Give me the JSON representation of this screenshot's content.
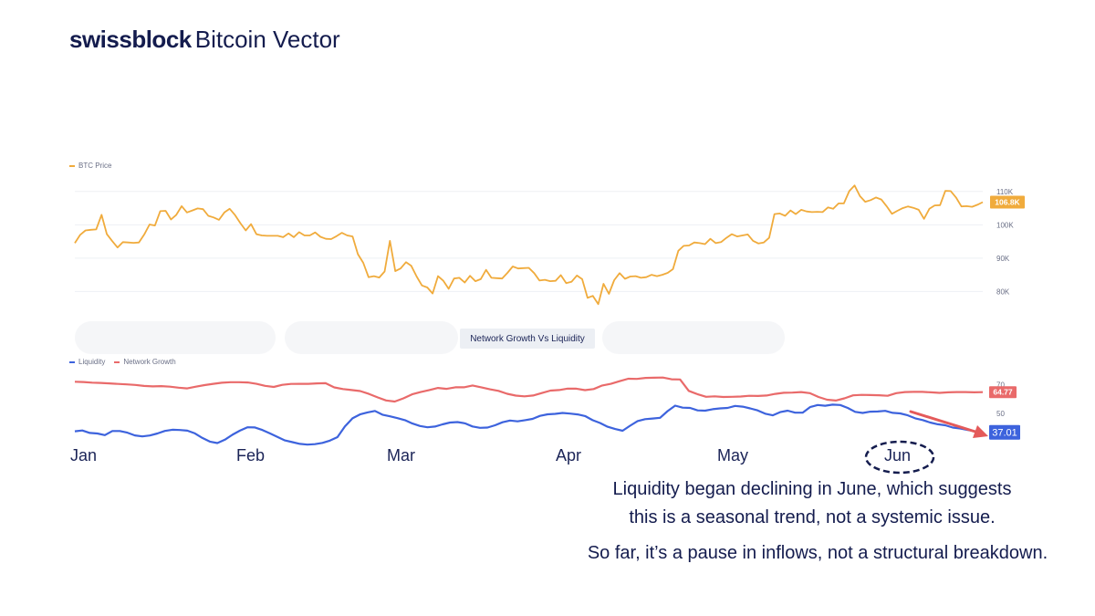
{
  "brand": {
    "name": "swissblock",
    "product": "Bitcoin Vector"
  },
  "colors": {
    "price": "#f0ab3c",
    "network_growth": "#e96a6a",
    "liquidity": "#3d63dd",
    "arrow": "#e45a5a",
    "text": "#1b2457"
  },
  "chart_data": [
    {
      "id": "price",
      "type": "line",
      "title": "",
      "legend": [
        "BTC Price"
      ],
      "y_ticks": [
        80000,
        90000,
        100000,
        110000
      ],
      "y_tick_labels": [
        "80K",
        "90K",
        "100K",
        "110K"
      ],
      "ylim": [
        73000,
        113500
      ],
      "last_value_label": "106.8K",
      "series": [
        {
          "name": "BTC Price",
          "color": "#f0ab3c",
          "values": [
            94500,
            97000,
            98300,
            98500,
            98600,
            103000,
            97200,
            95100,
            93200,
            94800,
            94700,
            94600,
            94700,
            97100,
            100100,
            99800,
            104100,
            104200,
            101600,
            103000,
            105600,
            103700,
            104300,
            104900,
            104700,
            102700,
            102200,
            101500,
            103700,
            104800,
            102900,
            100500,
            98300,
            100200,
            97200,
            96800,
            96700,
            96700,
            96700,
            96300,
            97400,
            96300,
            97800,
            96800,
            96800,
            97700,
            96400,
            95800,
            95700,
            96600,
            97600,
            96800,
            96500,
            91200,
            88600,
            84300,
            84600,
            84200,
            86000,
            95200,
            86100,
            86900,
            88800,
            87700,
            84500,
            81800,
            81200,
            79400,
            84600,
            83200,
            80800,
            83900,
            84100,
            82700,
            84700,
            83100,
            83700,
            86500,
            84100,
            84000,
            83900,
            85600,
            87500,
            86900,
            87000,
            87100,
            85500,
            83300,
            83500,
            83100,
            83200,
            84900,
            82500,
            82900,
            84800,
            83700,
            78100,
            78700,
            76200,
            82300,
            79300,
            83400,
            85500,
            83800,
            84500,
            84600,
            84100,
            84300,
            85000,
            84600,
            85000,
            85600,
            86700,
            92200,
            93700,
            93800,
            94700,
            94500,
            94200,
            95800,
            94500,
            94800,
            96100,
            97200,
            96500,
            96800,
            97100,
            95200,
            94400,
            94700,
            96100,
            103200,
            103400,
            102700,
            104300,
            103200,
            104500,
            104000,
            103800,
            103900,
            103800,
            105200,
            104800,
            106400,
            106400,
            110100,
            111800,
            108600,
            106900,
            107400,
            108200,
            107600,
            105600,
            103300,
            104200,
            105000,
            105500,
            105100,
            104500,
            101800,
            104800,
            105800,
            105900,
            110200,
            110100,
            108200,
            105500,
            105600,
            105400,
            106000,
            106800
          ]
        }
      ]
    },
    {
      "id": "network_liquidity",
      "type": "line",
      "title": "Network Growth Vs Liquidity",
      "legend": [
        "Liquidity",
        "Network Growth"
      ],
      "x_ticks": [
        "Jan",
        "Feb",
        "Mar",
        "Apr",
        "May",
        "Jun"
      ],
      "y_ticks": [
        50,
        70
      ],
      "y_tick_labels": [
        "50",
        "70"
      ],
      "ylim": [
        28,
        76
      ],
      "series": [
        {
          "name": "Network Growth",
          "color": "#e96a6a",
          "last_value_label": "64.77",
          "values": [
            72,
            71.8,
            71.4,
            71.2,
            70.9,
            70.5,
            70.2,
            69.8,
            69.1,
            68.8,
            69,
            68.6,
            67.9,
            67.4,
            68.6,
            69.7,
            70.6,
            71.3,
            71.7,
            71.7,
            71.5,
            70.6,
            69.2,
            68.4,
            69.9,
            70.5,
            70.6,
            70.6,
            70.9,
            71,
            68.1,
            67,
            66.3,
            65.6,
            63.6,
            61.2,
            59.1,
            58.3,
            60.5,
            63.3,
            64.9,
            66.3,
            67.7,
            67.1,
            68.2,
            68.2,
            69.4,
            68.2,
            66.8,
            65.7,
            63.7,
            62.4,
            61.9,
            62.5,
            64.2,
            65.9,
            66.3,
            67.3,
            67.2,
            66.2,
            67,
            69.4,
            70.6,
            72.4,
            74.1,
            74,
            74.7,
            74.8,
            74.9,
            73.7,
            73.6,
            65.7,
            63.4,
            61.6,
            61.9,
            61.5,
            61.6,
            61.8,
            62.3,
            62.2,
            62.5,
            63.6,
            64.4,
            64.5,
            64.9,
            64.1,
            61.5,
            59.6,
            59,
            60.5,
            62.6,
            62.9,
            62.8,
            62.7,
            62.3,
            64.1,
            64.9,
            65,
            65,
            64.7,
            64.3,
            64.7,
            64.9,
            64.9,
            64.7,
            64.8
          ]
        },
        {
          "name": "Liquidity",
          "color": "#3d63dd",
          "last_value_label": "37.01",
          "values": [
            37.7,
            38.3,
            36.6,
            36.2,
            35.1,
            37.9,
            37.9,
            36.8,
            34.9,
            34.2,
            34.8,
            36.2,
            38,
            38.8,
            38.6,
            38.2,
            36.3,
            33.1,
            30.6,
            29.6,
            31.9,
            35.3,
            38.2,
            40.5,
            40.4,
            38.6,
            36.3,
            33.8,
            31.4,
            30.2,
            29,
            28.5,
            28.8,
            29.7,
            31.3,
            33.7,
            41.1,
            46.7,
            49.4,
            50.8,
            51.8,
            49.2,
            48.1,
            46.8,
            45.4,
            43.1,
            41.4,
            40.5,
            41,
            42.5,
            43.8,
            44.1,
            43.2,
            41.1,
            40.1,
            40.3,
            41.9,
            44,
            45.2,
            44.6,
            45.4,
            46.3,
            48.4,
            49.5,
            49.8,
            50.4,
            50,
            49.4,
            48.3,
            45.4,
            43.5,
            40.9,
            39.3,
            38.1,
            41.6,
            44.8,
            46.1,
            46.6,
            47.1,
            51.7,
            55.5,
            54.1,
            53.9,
            52.2,
            52,
            53,
            53.6,
            53.9,
            55.3,
            54.8,
            53.6,
            52.2,
            49.9,
            48.8,
            51,
            52,
            50.6,
            50.6,
            54.5,
            55.9,
            55.4,
            56.2,
            55.9,
            53.9,
            51.2,
            50.4,
            51.3,
            51.4,
            51.9,
            50.5,
            50.1,
            48.8,
            46.7,
            45.5,
            43.8,
            42.6,
            41.9,
            40.3,
            39.7,
            38.6,
            37.7,
            37.01
          ]
        }
      ]
    }
  ],
  "annotations": {
    "line1": "Liquidity began declining in June, which suggests",
    "line2": "this is a seasonal trend, not a systemic issue.",
    "line3": "So far, it’s a pause in inflows, not a structural breakdown."
  }
}
